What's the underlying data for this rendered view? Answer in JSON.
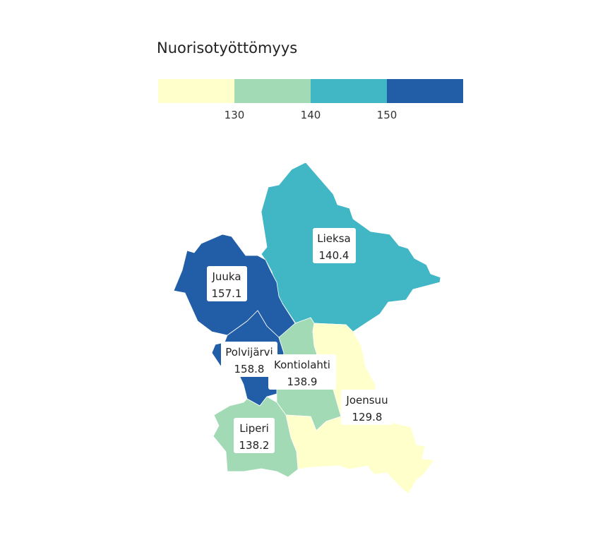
{
  "title": "Nuorisotyöttömyys",
  "legend": {
    "colors": [
      "#ffffcc",
      "#a1dab4",
      "#41b6c4",
      "#225ea8"
    ],
    "ticks": [
      "130",
      "140",
      "150"
    ]
  },
  "regions": [
    {
      "name": "Lieksa",
      "value": "140.4",
      "color": "#41b6c4"
    },
    {
      "name": "Juuka",
      "value": "157.1",
      "color": "#225ea8"
    },
    {
      "name": "Polvijärvi",
      "value": "158.8",
      "color": "#225ea8"
    },
    {
      "name": "Kontiolahti",
      "value": "138.9",
      "color": "#a1dab4"
    },
    {
      "name": "Joensuu",
      "value": "129.8",
      "color": "#ffffcc"
    },
    {
      "name": "Liperi",
      "value": "138.2",
      "color": "#a1dab4"
    }
  ]
}
